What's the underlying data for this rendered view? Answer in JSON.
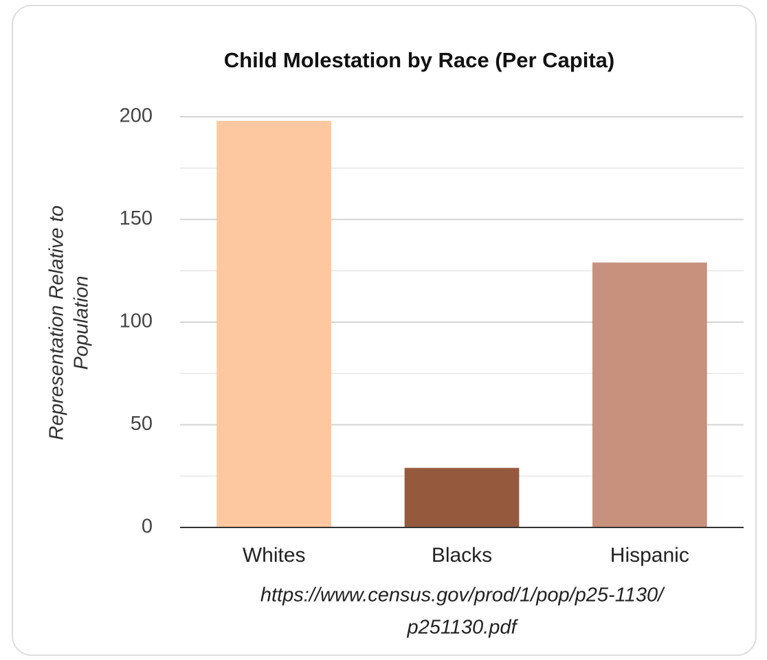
{
  "chart_data": {
    "type": "bar",
    "title": "Child Molestation by Race (Per Capita)",
    "ylabel": [
      "Representation Relative to",
      "Population"
    ],
    "categories": [
      "Whites",
      "Blacks",
      "Hispanic"
    ],
    "values": [
      198,
      29,
      129
    ],
    "colors": [
      "#fdc89f",
      "#955a3e",
      "#c7917e"
    ],
    "ylim": [
      0,
      200
    ],
    "yticks": [
      0,
      50,
      100,
      150,
      200
    ],
    "minor_yticks": [
      25,
      75,
      125,
      175
    ],
    "grid": true,
    "source": [
      "https://www.census.gov/prod/1/pop/p25-1130/",
      "p251130.pdf"
    ]
  }
}
